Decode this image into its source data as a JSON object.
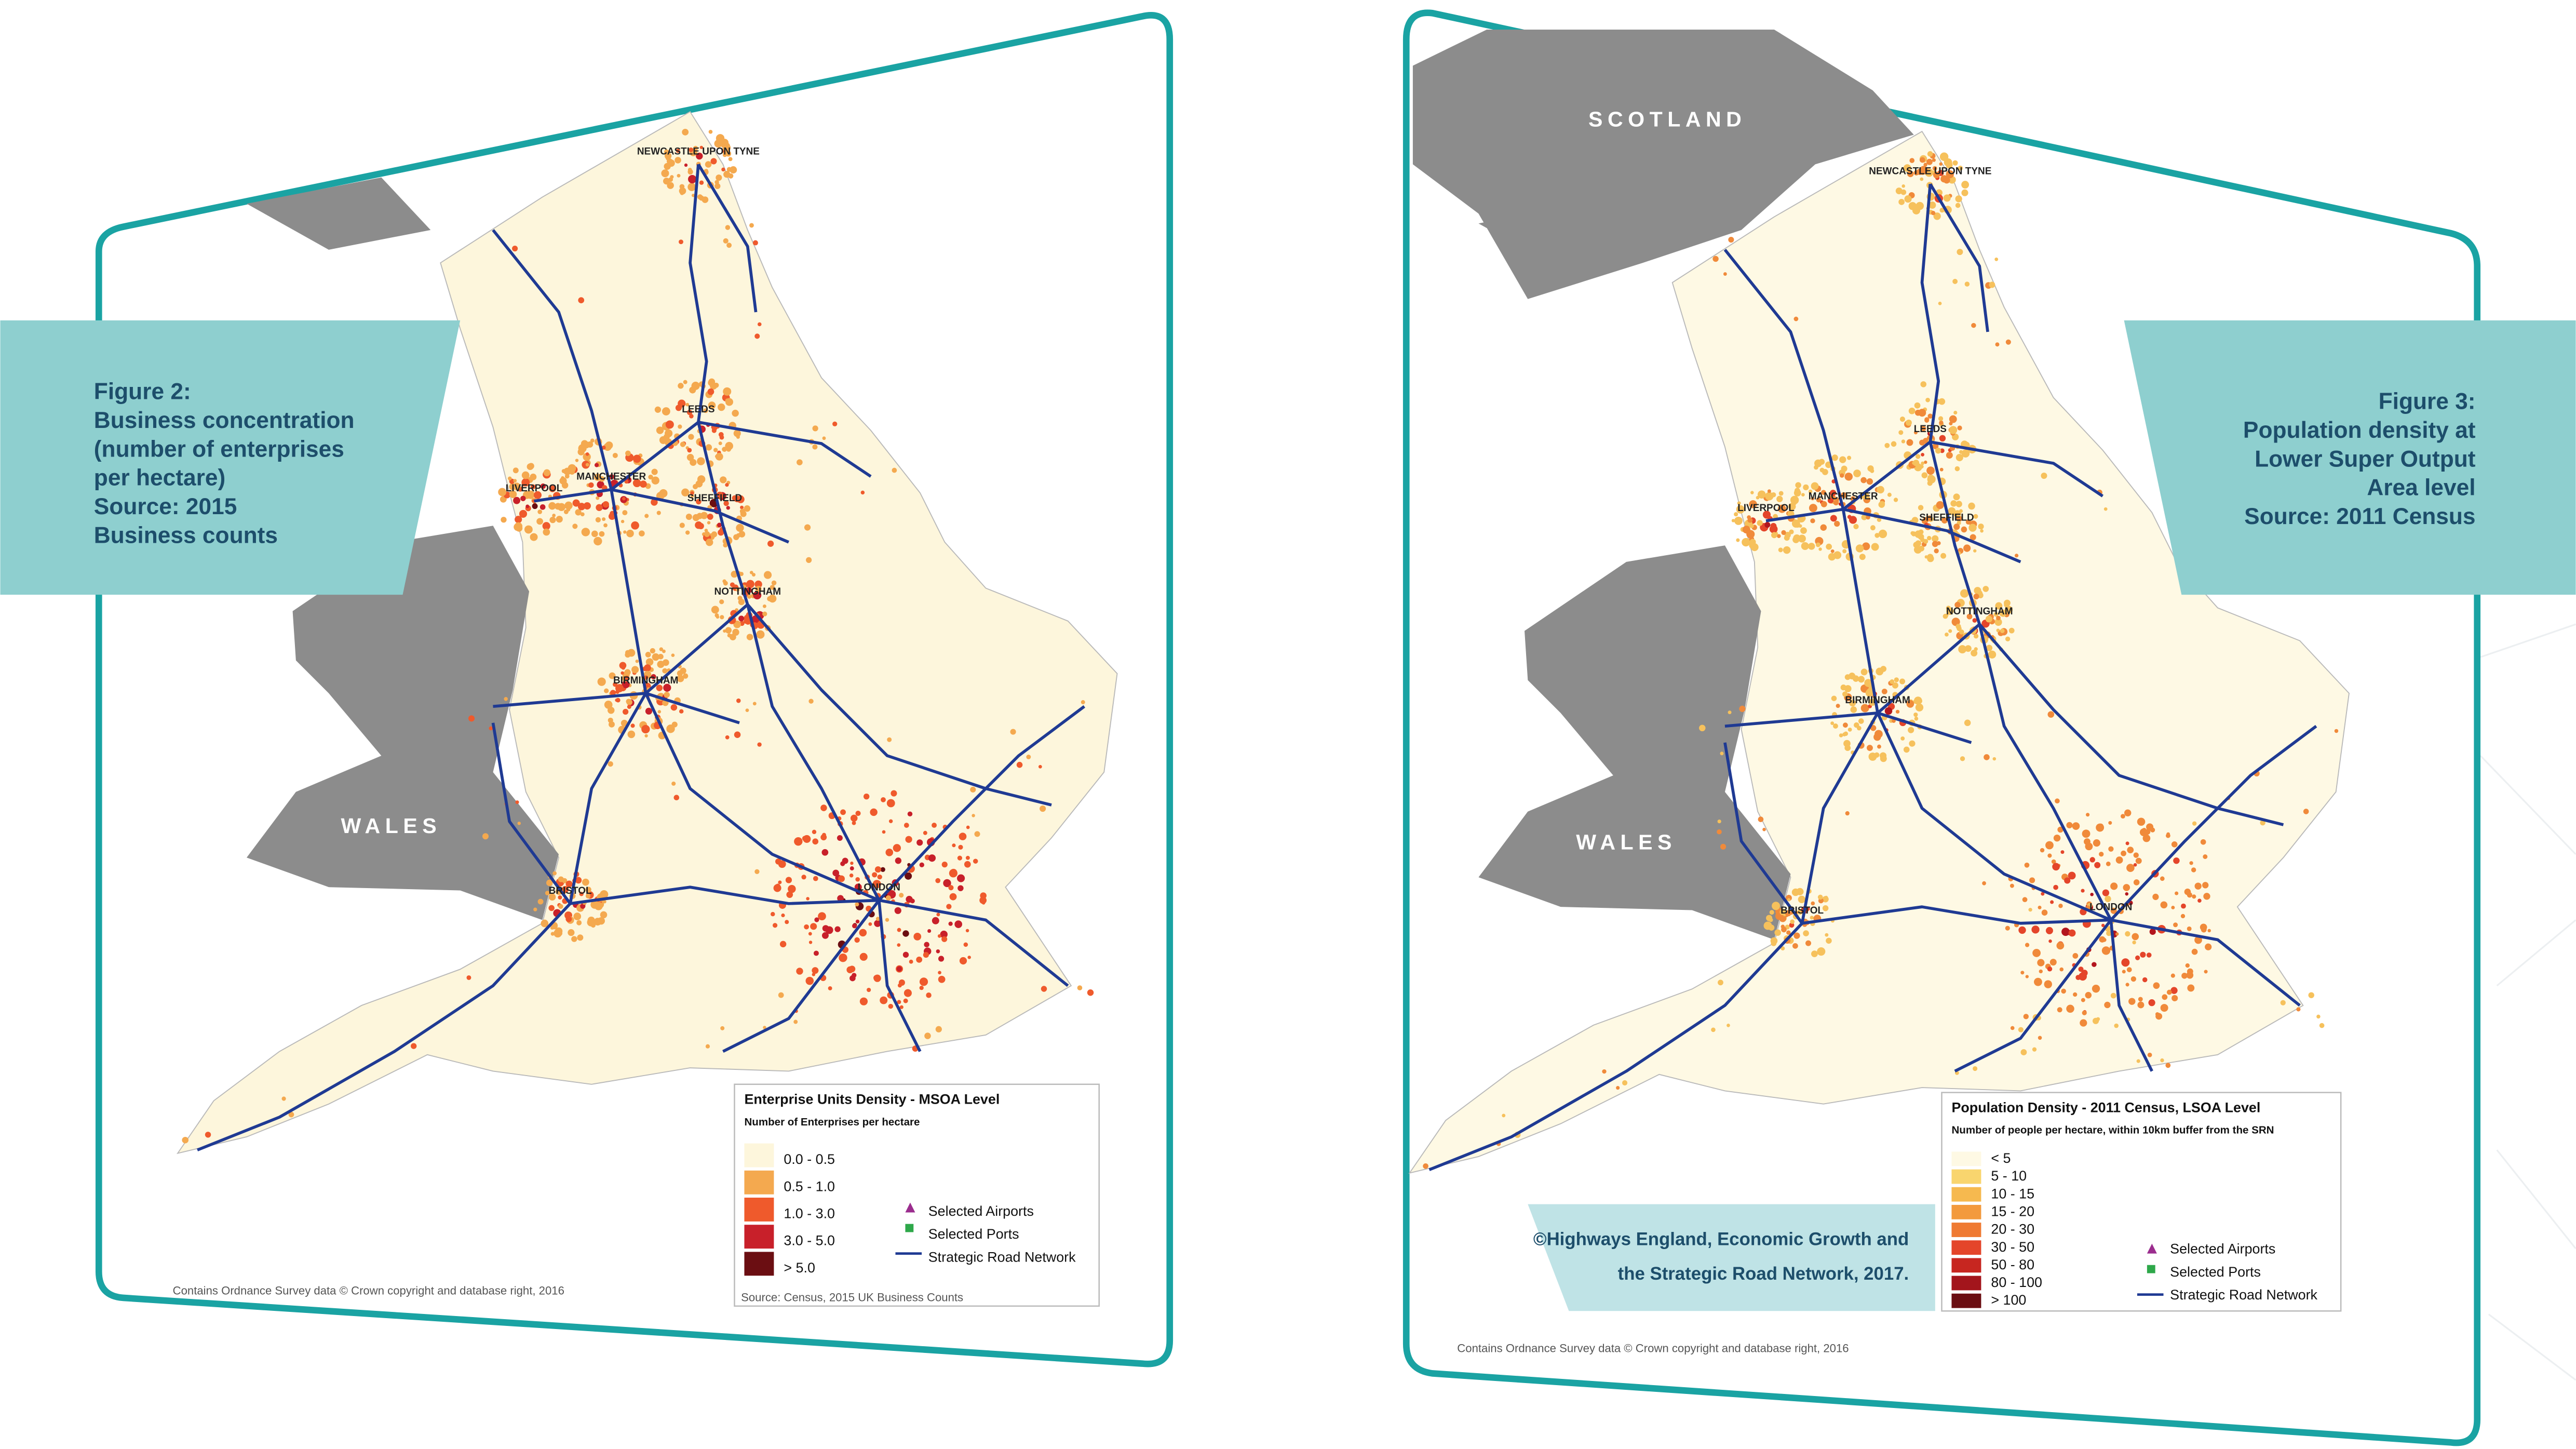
{
  "figures": [
    {
      "caption": [
        "Figure 2:",
        "Business concentration",
        "(number of enterprises",
        "per hectare)",
        "Source: 2015",
        "Business counts"
      ],
      "region_labels": [
        "WALES"
      ],
      "places": [
        "NEWCASTLE UPON TYNE",
        "LEEDS",
        "MANCHESTER",
        "LIVERPOOL",
        "SHEFFIELD",
        "NOTTINGHAM",
        "BIRMINGHAM",
        "LONDON",
        "BRISTOL"
      ],
      "legend": {
        "title": "Enterprise Units Density - MSOA Level",
        "subtitle": "Number of Enterprises per hectare",
        "classes": [
          "0.0 - 0.5",
          "0.5 - 1.0",
          "1.0 - 3.0",
          "3.0 - 5.0",
          "> 5.0"
        ],
        "symbols": [
          "Selected Airports",
          "Selected Ports",
          "Strategic Road Network"
        ],
        "source": "Source: Census, 2015 UK Business Counts"
      },
      "credit": "Contains Ordnance Survey data © Crown copyright and database right, 2016"
    },
    {
      "caption": [
        "Figure 3:",
        "Population density at",
        "Lower Super Output",
        "Area level",
        "Source: 2011 Census"
      ],
      "region_labels": [
        "SCOTLAND",
        "WALES"
      ],
      "places": [
        "NEWCASTLE UPON TYNE",
        "LEEDS",
        "MANCHESTER",
        "LIVERPOOL",
        "SHEFFIELD",
        "NOTTINGHAM",
        "BIRMINGHAM",
        "LONDON",
        "BRISTOL"
      ],
      "legend": {
        "title": "Population Density - 2011 Census, LSOA Level",
        "subtitle": "Number of people per hectare, within 10km buffer from the SRN",
        "classes": [
          "< 5",
          "5 - 10",
          "10 - 15",
          "15 - 20",
          "20 - 30",
          "30 - 50",
          "50 - 80",
          "80 - 100",
          "> 100"
        ],
        "symbols": [
          "Selected Airports",
          "Selected Ports",
          "Strategic Road Network"
        ]
      },
      "credit": "Contains Ordnance Survey data © Crown copyright and database right, 2016"
    }
  ],
  "citation": [
    "©Highways England, Economic Growth and",
    "the Strategic Road Network, 2017."
  ]
}
